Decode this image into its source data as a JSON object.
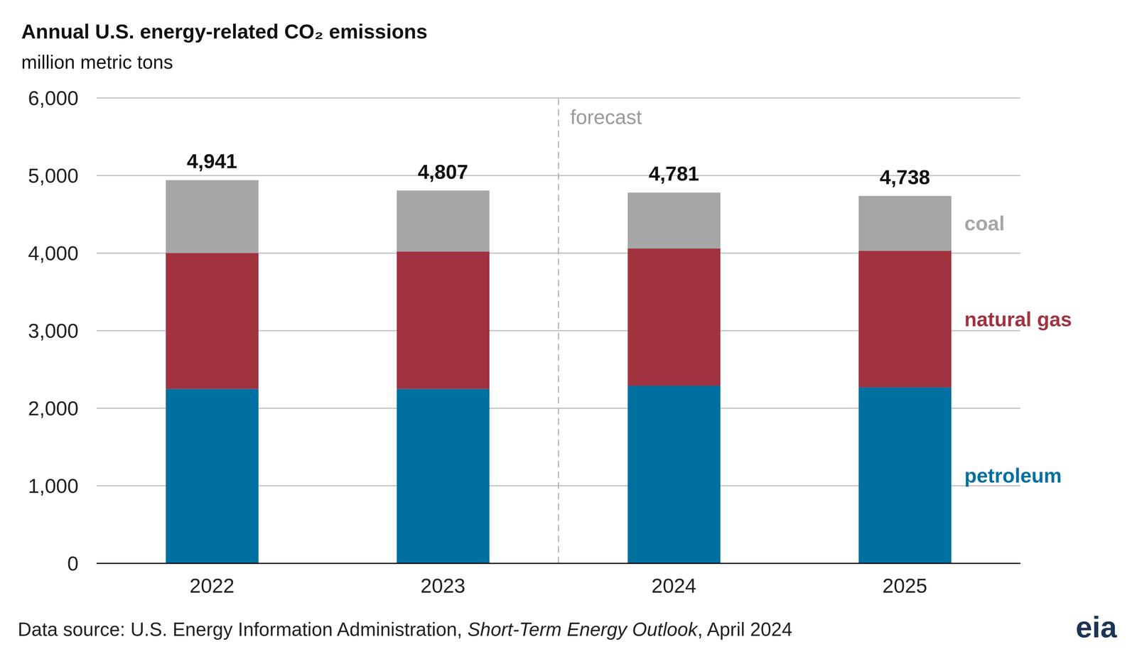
{
  "chart_data": {
    "type": "bar",
    "title": "Annual U.S. energy-related CO₂ emissions",
    "subtitle": "million metric tons",
    "categories": [
      "2022",
      "2023",
      "2024",
      "2025"
    ],
    "series": [
      {
        "name": "petroleum",
        "color": "#0070a1",
        "values": [
          2250,
          2250,
          2290,
          2270
        ]
      },
      {
        "name": "natural gas",
        "color": "#a13340",
        "values": [
          1750,
          1770,
          1770,
          1760
        ]
      },
      {
        "name": "coal",
        "color": "#a6a6a6",
        "values": [
          941,
          787,
          721,
          708
        ]
      }
    ],
    "stacked": true,
    "totals": [
      4941,
      4807,
      4781,
      4738
    ],
    "total_labels": [
      "4,941",
      "4,807",
      "4,781",
      "4,738"
    ],
    "ylim": [
      0,
      6000
    ],
    "yticks": [
      0,
      {
        "value": 1000,
        "label": "1,000"
      },
      {
        "value": 2000,
        "label": "2,000"
      },
      {
        "value": 3000,
        "label": "3,000"
      },
      {
        "value": 4000,
        "label": "4,000"
      },
      {
        "value": 5000,
        "label": "5,000"
      },
      {
        "value": 6000,
        "label": "6,000"
      }
    ],
    "grid": true,
    "annotations": [
      {
        "text": "forecast",
        "x": "2024"
      }
    ],
    "source_parts": [
      "Data source: U.S. Energy Information Administration, ",
      "Short-Term Energy Outlook",
      ", April 2024"
    ],
    "logo": "eia"
  }
}
